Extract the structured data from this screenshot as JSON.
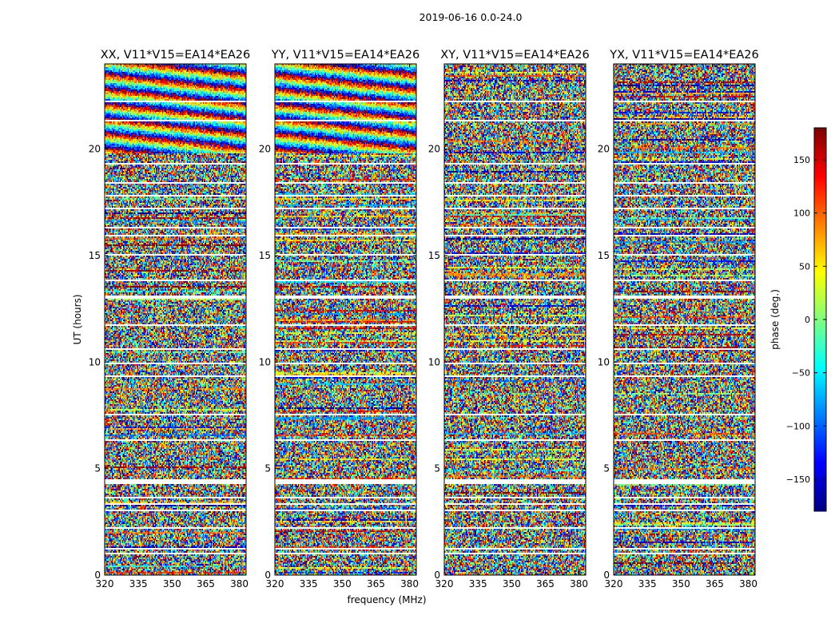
{
  "figure": {
    "suptitle": "2019-06-16 0.0-24.0"
  },
  "chart_data": {
    "type": "heatmap",
    "title": "2019-06-16 0.0-24.0",
    "xlabel": "frequency (MHz)",
    "ylabel": "UT (hours)",
    "xlim": [
      320,
      383
    ],
    "ylim": [
      0,
      24
    ],
    "x_ticks": [
      320,
      335,
      350,
      365,
      380
    ],
    "y_ticks": [
      0,
      5,
      10,
      15,
      20
    ],
    "panels": [
      {
        "title": "XX, V11*V15=EA14*EA26",
        "correlation": "XX",
        "coherent_hours": [
          19.8,
          24.0
        ]
      },
      {
        "title": "YY, V11*V15=EA14*EA26",
        "correlation": "YY",
        "coherent_hours": [
          19.8,
          24.0
        ]
      },
      {
        "title": "XY, V11*V15=EA14*EA26",
        "correlation": "XY",
        "coherent_hours": []
      },
      {
        "title": "YX, V11*V15=EA14*EA26",
        "correlation": "YX",
        "coherent_hours": []
      }
    ],
    "flagged_hours": [
      [
        0.95,
        1.05
      ],
      [
        1.2,
        1.25
      ],
      [
        1.85,
        1.9
      ],
      [
        2.2,
        2.25
      ],
      [
        3.0,
        3.05
      ],
      [
        3.3,
        3.35
      ],
      [
        3.6,
        3.7
      ],
      [
        4.1,
        4.15
      ],
      [
        4.3,
        4.5
      ],
      [
        5.9,
        5.95
      ],
      [
        6.3,
        6.35
      ],
      [
        7.5,
        7.55
      ],
      [
        8.0,
        8.05
      ],
      [
        8.6,
        8.65
      ],
      [
        8.9,
        8.95
      ],
      [
        9.3,
        9.35
      ],
      [
        9.5,
        9.55
      ],
      [
        9.9,
        9.95
      ],
      [
        10.6,
        10.65
      ],
      [
        11.7,
        11.75
      ],
      [
        12.5,
        12.55
      ],
      [
        13.0,
        13.1
      ],
      [
        13.8,
        13.85
      ],
      [
        14.3,
        14.35
      ],
      [
        15.0,
        15.05
      ],
      [
        15.9,
        15.95
      ],
      [
        16.3,
        16.35
      ],
      [
        17.2,
        17.25
      ],
      [
        17.8,
        17.85
      ],
      [
        18.4,
        18.45
      ],
      [
        19.3,
        19.35
      ],
      [
        20.0,
        20.05
      ],
      [
        20.3,
        20.35
      ],
      [
        21.3,
        21.35
      ],
      [
        22.2,
        22.25
      ],
      [
        23.0,
        23.05
      ]
    ],
    "colorbar": {
      "label": "phase (deg.)",
      "range": [
        -180,
        180
      ],
      "ticks": [
        -150,
        -100,
        -50,
        0,
        50,
        100,
        150
      ],
      "tick_labels": [
        "−150",
        "−100",
        "−50",
        "0",
        "50",
        "100",
        "150"
      ],
      "colormap": "jet"
    }
  }
}
